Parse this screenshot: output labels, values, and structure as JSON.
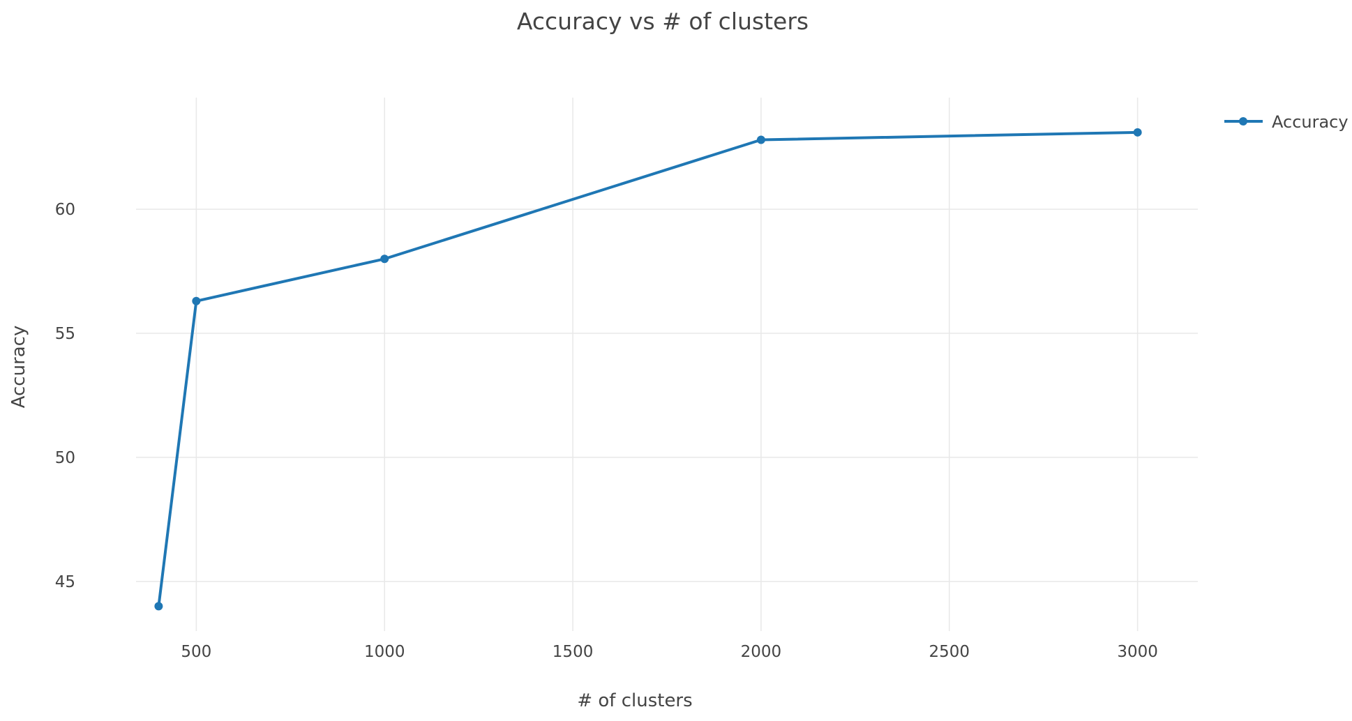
{
  "chart_data": {
    "type": "line",
    "title": "Accuracy vs # of clusters",
    "xlabel": "# of clusters",
    "ylabel": "Accuracy",
    "x": [
      400,
      500,
      1000,
      2000,
      3000
    ],
    "series": [
      {
        "name": "Accuracy",
        "color": "#1f77b4",
        "values": [
          44.0,
          56.3,
          58.0,
          62.8,
          63.1
        ]
      }
    ],
    "xlim": [
      340,
      3160
    ],
    "ylim": [
      43.0,
      64.5
    ],
    "x_ticks": [
      500,
      1000,
      1500,
      2000,
      2500,
      3000
    ],
    "x_tick_labels": [
      "500",
      "1000",
      "1500",
      "2000",
      "2500",
      "3000"
    ],
    "y_ticks": [
      45,
      50,
      55,
      60
    ],
    "y_tick_labels": [
      "45",
      "50",
      "55",
      "60"
    ],
    "grid": true,
    "grid_color": "#e8e8e8",
    "markers": true,
    "legend_position": "top-right"
  }
}
